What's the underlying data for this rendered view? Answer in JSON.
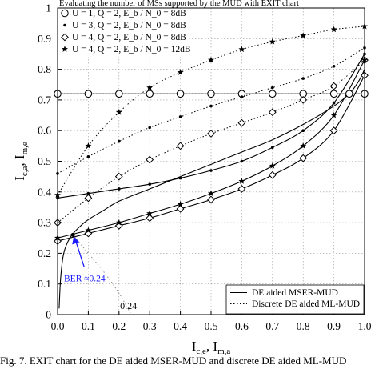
{
  "caption": "Fig. 7.   EXIT chart for the DE aided MSER-MUD and discrete DE aided ML-MUD",
  "chart_data": {
    "type": "line",
    "title": "Evaluating the number of MSs supported by the MUD with EXIT chart",
    "xlabel": "I_c,e, I_m,a",
    "ylabel": "I_c,a, I_m,e",
    "xlim": [
      0,
      1
    ],
    "ylim": [
      0,
      1
    ],
    "xticks": [
      "0.0",
      "0.1",
      "0.2",
      "0.3",
      "0.4",
      "0.5",
      "0.6",
      "0.7",
      "0.8",
      "0.9",
      "1.0"
    ],
    "yticks": [
      "0",
      "0.1",
      "0.2",
      "0.3",
      "0.4",
      "0.5",
      "0.6",
      "0.7",
      "0.8",
      "0.9",
      "1"
    ],
    "grid": true,
    "legend_top": {
      "position": "top-left",
      "entries": [
        {
          "marker": "circle",
          "text": "U = 1, Q = 2, E_b / N_0 = 8dB"
        },
        {
          "marker": "dot",
          "text": "U = 3, Q = 2, E_b / N_0 = 8dB"
        },
        {
          "marker": "diamond",
          "text": "U = 4, Q = 2, E_b / N_0 = 8dB"
        },
        {
          "marker": "star",
          "text": "U = 4, Q = 2, E_b / N_0 = 12dB"
        }
      ]
    },
    "legend_bottom": {
      "position": "bottom-right",
      "entries": [
        {
          "style": "solid",
          "text": "DE aided MSER-MUD"
        },
        {
          "style": "dotted",
          "text": "Discrete DE aided ML-MUD"
        }
      ]
    },
    "annotations": [
      {
        "text": "BER ≈0.24",
        "x": 0.05,
        "y": 0.26,
        "color": "#1a1aff"
      },
      {
        "text": "0.24",
        "x": 0.24,
        "y": 0.0
      }
    ],
    "series": [
      {
        "style": "solid",
        "marker": "circle",
        "x": [
          0,
          0.1,
          0.2,
          0.3,
          0.4,
          0.5,
          0.6,
          0.7,
          0.8,
          0.9,
          0.95,
          1.0
        ],
        "y": [
          0.72,
          0.72,
          0.72,
          0.72,
          0.72,
          0.72,
          0.72,
          0.72,
          0.72,
          0.72,
          0.72,
          0.72
        ]
      },
      {
        "style": "dotted",
        "marker": "circle",
        "x": [
          0,
          0.1,
          0.2,
          0.3,
          0.4,
          0.5,
          0.6,
          0.7,
          0.8,
          0.9,
          0.95,
          1.0
        ],
        "y": [
          0.72,
          0.72,
          0.72,
          0.72,
          0.72,
          0.72,
          0.72,
          0.72,
          0.72,
          0.72,
          0.72,
          0.72
        ]
      },
      {
        "style": "solid",
        "marker": "dot",
        "x": [
          0,
          0.1,
          0.2,
          0.3,
          0.4,
          0.5,
          0.6,
          0.7,
          0.8,
          0.9,
          1.0
        ],
        "y": [
          0.38,
          0.395,
          0.41,
          0.425,
          0.445,
          0.47,
          0.5,
          0.545,
          0.6,
          0.69,
          0.85
        ]
      },
      {
        "style": "dotted",
        "marker": "dot",
        "x": [
          0,
          0.1,
          0.2,
          0.3,
          0.4,
          0.5,
          0.6,
          0.7,
          0.8,
          0.9,
          1.0
        ],
        "y": [
          0.46,
          0.515,
          0.565,
          0.61,
          0.645,
          0.68,
          0.71,
          0.74,
          0.77,
          0.81,
          0.87
        ]
      },
      {
        "style": "solid",
        "marker": "diamond",
        "x": [
          0,
          0.1,
          0.2,
          0.3,
          0.4,
          0.5,
          0.6,
          0.7,
          0.8,
          0.9,
          1.0
        ],
        "y": [
          0.24,
          0.265,
          0.29,
          0.315,
          0.345,
          0.375,
          0.41,
          0.455,
          0.51,
          0.6,
          0.78
        ]
      },
      {
        "style": "dotted",
        "marker": "diamond",
        "x": [
          0,
          0.1,
          0.2,
          0.3,
          0.4,
          0.5,
          0.6,
          0.7,
          0.8,
          0.9,
          1.0
        ],
        "y": [
          0.3,
          0.38,
          0.45,
          0.505,
          0.55,
          0.59,
          0.625,
          0.66,
          0.7,
          0.745,
          0.83
        ]
      },
      {
        "style": "solid",
        "marker": "star",
        "x": [
          0,
          0.1,
          0.2,
          0.3,
          0.4,
          0.5,
          0.6,
          0.7,
          0.8,
          0.9,
          1.0
        ],
        "y": [
          0.25,
          0.275,
          0.3,
          0.33,
          0.36,
          0.395,
          0.435,
          0.485,
          0.55,
          0.65,
          0.83
        ]
      },
      {
        "style": "dotted",
        "marker": "star",
        "x": [
          0,
          0.1,
          0.2,
          0.3,
          0.4,
          0.5,
          0.6,
          0.7,
          0.8,
          0.9,
          1.0
        ],
        "y": [
          0.39,
          0.55,
          0.66,
          0.74,
          0.79,
          0.83,
          0.865,
          0.89,
          0.91,
          0.93,
          0.94
        ]
      },
      {
        "style": "solid",
        "marker": "none",
        "x": [
          0.005,
          0.01,
          0.02,
          0.04,
          0.07,
          0.1,
          0.15,
          0.2,
          0.3,
          0.4,
          0.5,
          0.6,
          0.7,
          0.8,
          0.9,
          0.95,
          0.98,
          1.0
        ],
        "y": [
          0.02,
          0.12,
          0.2,
          0.25,
          0.285,
          0.31,
          0.34,
          0.37,
          0.41,
          0.45,
          0.49,
          0.53,
          0.57,
          0.62,
          0.68,
          0.72,
          0.76,
          0.8
        ]
      },
      {
        "style": "dotted",
        "marker": "none",
        "x": [
          0.05,
          0.1,
          0.15,
          0.2,
          0.24
        ],
        "y": [
          0.26,
          0.2,
          0.14,
          0.07,
          0.0
        ]
      }
    ]
  }
}
